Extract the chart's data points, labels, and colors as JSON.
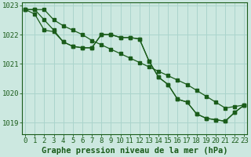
{
  "xlabel": "Graphe pression niveau de la mer (hPa)",
  "ylim": [
    1018.6,
    1023.1
  ],
  "xlim": [
    -0.3,
    23.3
  ],
  "yticks": [
    1019,
    1020,
    1021,
    1022,
    1023
  ],
  "xticks": [
    0,
    1,
    2,
    3,
    4,
    5,
    6,
    7,
    8,
    9,
    10,
    11,
    12,
    13,
    14,
    15,
    16,
    17,
    18,
    19,
    20,
    21,
    22,
    23
  ],
  "bg_color": "#cce8e0",
  "grid_color": "#aad4cc",
  "line_color": "#1a5c1a",
  "series1": [
    1022.85,
    1022.85,
    1022.5,
    1022.15,
    1021.75,
    1021.6,
    1021.55,
    1021.55,
    1022.0,
    1022.0,
    1021.9,
    1021.9,
    1021.85,
    1021.1,
    1020.55,
    1020.3,
    1019.8,
    1019.7,
    1019.3,
    1019.15,
    1019.1,
    1019.05,
    1019.35,
    1019.6
  ],
  "series2": [
    1022.85,
    1022.7,
    1022.15,
    1022.1,
    1021.75,
    1021.6,
    1021.55,
    1021.55,
    1022.0,
    1022.0,
    1021.9,
    1021.9,
    1021.85,
    1021.1,
    1020.55,
    1020.3,
    1019.8,
    1019.7,
    1019.3,
    1019.15,
    1019.1,
    1019.05,
    1019.35,
    1019.6
  ],
  "series3": [
    1022.85,
    1022.85,
    1022.85,
    1022.5,
    1022.3,
    1022.15,
    1022.0,
    1021.8,
    1021.65,
    1021.5,
    1021.35,
    1021.2,
    1021.05,
    1020.9,
    1020.75,
    1020.6,
    1020.45,
    1020.3,
    1020.1,
    1019.9,
    1019.7,
    1019.5,
    1019.55,
    1019.6
  ],
  "tick_fontsize": 6.5,
  "label_fontsize": 7.5
}
